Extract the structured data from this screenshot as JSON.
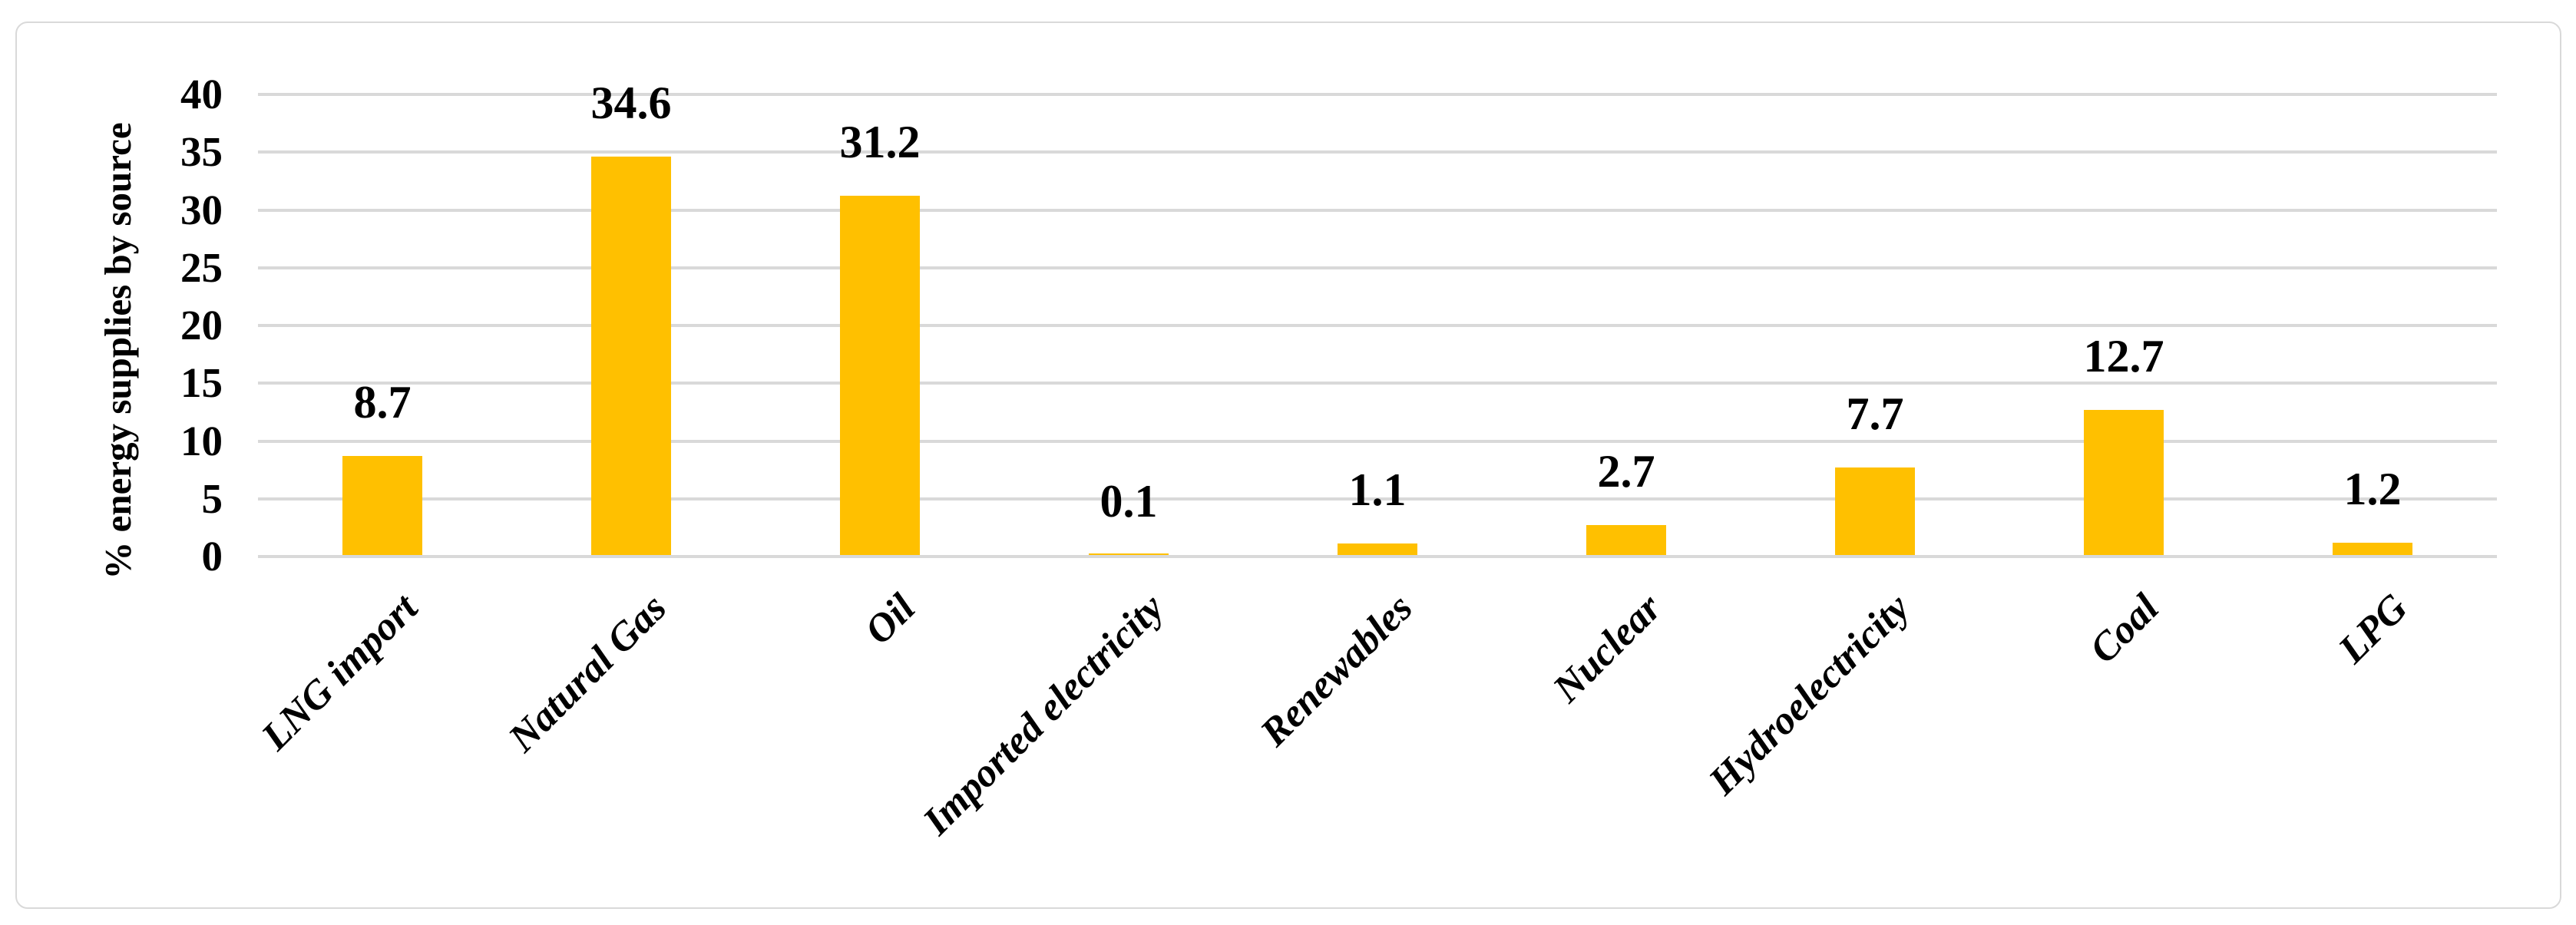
{
  "chart_data": {
    "type": "bar",
    "title": "",
    "xlabel": "",
    "ylabel": "% energy supplies by source",
    "categories": [
      "LNG import",
      "Natural Gas",
      "Oil",
      "Imported electricity",
      "Renewables",
      "Nuclear",
      "Hydroelectricity",
      "Coal",
      "LPG"
    ],
    "values": [
      8.7,
      34.6,
      31.2,
      0.1,
      1.1,
      2.7,
      7.7,
      12.7,
      1.2
    ],
    "data_labels": [
      "8.7",
      "34.6",
      "31.2",
      "0.1",
      "1.1",
      "2.7",
      "7.7",
      "12.7",
      "1.2"
    ],
    "ylim": [
      0,
      40
    ],
    "yticks": [
      0,
      5,
      10,
      15,
      20,
      25,
      30,
      35,
      40
    ],
    "grid": true,
    "legend_position": "none",
    "bar_color": "#FFC000",
    "gridline_color": "#D9D9D9",
    "frame_border_color": "#D9D9D9",
    "text_color": "#000000",
    "background_color": "#FFFFFF"
  }
}
